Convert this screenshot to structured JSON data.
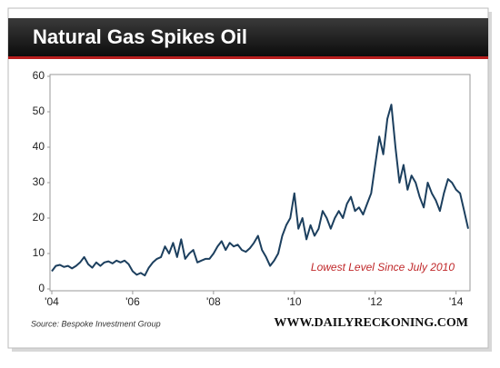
{
  "chart_data": {
    "type": "line",
    "title": "Natural Gas Spikes Oil",
    "annotation": "Lowest Level Since July 2010",
    "source": "Source: Bespoke Investment Group",
    "website": "WWW.DAILYRECKONING.COM",
    "color": "#1c3f5e",
    "x": [
      2004.0,
      2004.1,
      2004.2,
      2004.3,
      2004.4,
      2004.5,
      2004.6,
      2004.7,
      2004.8,
      2004.9,
      2005.0,
      2005.1,
      2005.2,
      2005.3,
      2005.4,
      2005.5,
      2005.6,
      2005.7,
      2005.8,
      2005.9,
      2006.0,
      2006.1,
      2006.2,
      2006.3,
      2006.4,
      2006.5,
      2006.6,
      2006.7,
      2006.8,
      2006.9,
      2007.0,
      2007.1,
      2007.2,
      2007.3,
      2007.4,
      2007.5,
      2007.6,
      2007.7,
      2007.8,
      2007.9,
      2008.0,
      2008.1,
      2008.2,
      2008.3,
      2008.4,
      2008.5,
      2008.6,
      2008.7,
      2008.8,
      2008.9,
      2009.0,
      2009.1,
      2009.2,
      2009.3,
      2009.4,
      2009.5,
      2009.6,
      2009.7,
      2009.8,
      2009.9,
      2010.0,
      2010.1,
      2010.2,
      2010.3,
      2010.4,
      2010.5,
      2010.6,
      2010.7,
      2010.8,
      2010.9,
      2011.0,
      2011.1,
      2011.2,
      2011.3,
      2011.4,
      2011.5,
      2011.6,
      2011.7,
      2011.8,
      2011.9,
      2012.0,
      2012.1,
      2012.2,
      2012.3,
      2012.4,
      2012.5,
      2012.6,
      2012.7,
      2012.8,
      2012.9,
      2013.0,
      2013.1,
      2013.2,
      2013.3,
      2013.4,
      2013.5,
      2013.6,
      2013.7,
      2013.8,
      2013.9,
      2014.0,
      2014.1,
      2014.2,
      2014.3
    ],
    "values": [
      5,
      6.5,
      6.8,
      6.2,
      6.5,
      5.8,
      6.5,
      7.5,
      9,
      7,
      6,
      7.5,
      6.5,
      7.5,
      7.8,
      7.2,
      8,
      7.5,
      8,
      7,
      5,
      4,
      4.5,
      3.8,
      6,
      7.5,
      8.5,
      9,
      12,
      10,
      13,
      9,
      14,
      8.5,
      10,
      11,
      7.5,
      8,
      8.5,
      8.5,
      10,
      12,
      13.5,
      11,
      13,
      12,
      12.5,
      11,
      10.5,
      11.5,
      13,
      15,
      11,
      9,
      6.5,
      8,
      10,
      15,
      18,
      20,
      27,
      17,
      20,
      14,
      18,
      15,
      17,
      22,
      20,
      17,
      20,
      22,
      20,
      24,
      26,
      22,
      23,
      21,
      24,
      27,
      35,
      43,
      38,
      48,
      52,
      40,
      30,
      35,
      28,
      32,
      30,
      26,
      23,
      30,
      27,
      25,
      22,
      27,
      31,
      30,
      28,
      27,
      22,
      17
    ],
    "xlim": [
      2004,
      2014.3
    ],
    "xticks": [
      {
        "value": 2004,
        "label": "'04"
      },
      {
        "value": 2006,
        "label": "'06"
      },
      {
        "value": 2008,
        "label": "'08"
      },
      {
        "value": 2010,
        "label": "'10"
      },
      {
        "value": 2012,
        "label": "'12"
      },
      {
        "value": 2014,
        "label": "'14"
      }
    ],
    "ylim": [
      0,
      60
    ],
    "yticks": [
      0,
      10,
      20,
      30,
      40,
      50,
      60
    ]
  }
}
